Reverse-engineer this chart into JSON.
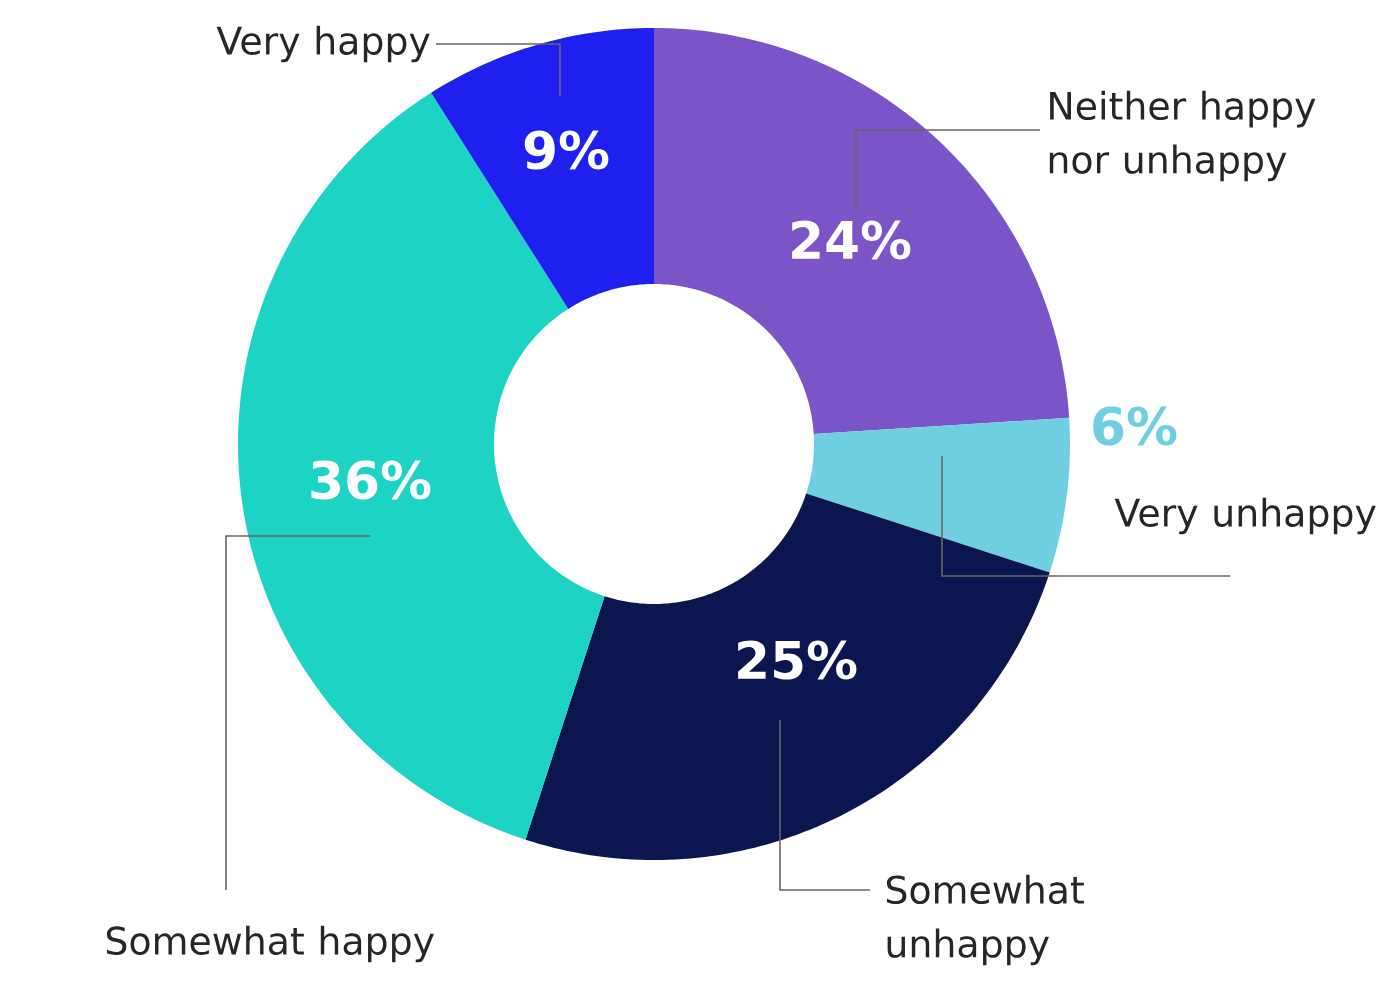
{
  "chart_data": {
    "type": "donut",
    "categories": [
      "Neither happy nor unhappy",
      "Very unhappy",
      "Somewhat unhappy",
      "Somewhat happy",
      "Very happy"
    ],
    "values": [
      24,
      6,
      25,
      36,
      9
    ],
    "value_labels": [
      "24%",
      "6%",
      "25%",
      "36%",
      "9%"
    ],
    "colors": [
      "#7b55c7",
      "#6dcfe0",
      "#0b1650",
      "#1cd3c4",
      "#1f1fef"
    ]
  }
}
